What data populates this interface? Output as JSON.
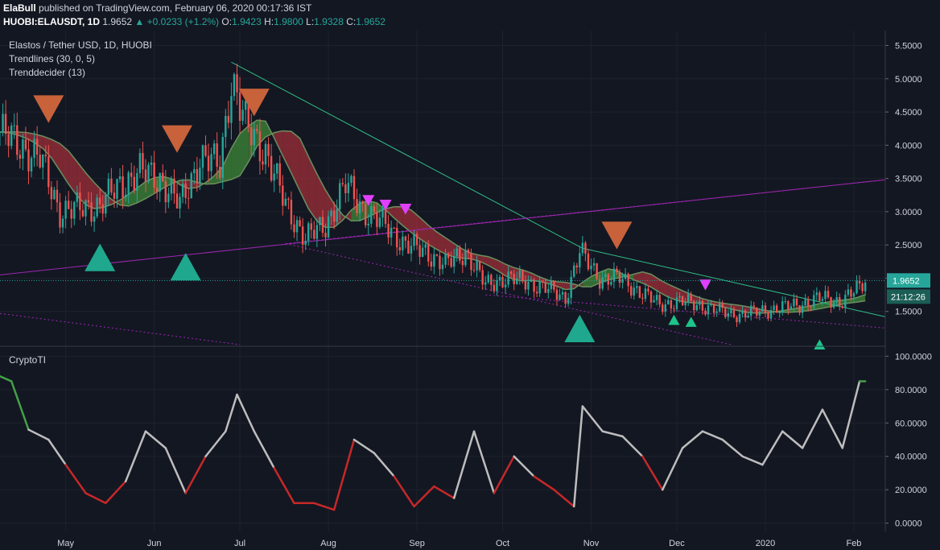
{
  "header": {
    "publisher": "ElaBull",
    "published_text": "published on TradingView.com, February 06, 2020 00:17:36 IST",
    "symbol": "HUOBI:ELAUSDT, 1D",
    "last": "1.9652",
    "change": "+0.0233 (+1.2%)",
    "o_label": "O:",
    "o": "1.9423",
    "h_label": "H:",
    "h": "1.9800",
    "l_label": "L:",
    "l": "1.9328",
    "c_label": "C:",
    "c": "1.9652"
  },
  "legend": {
    "title": "Elastos / Tether USD, 1D, HUOBI",
    "ind1": "Trendlines (30, 0, 5)",
    "ind2": "Trenddecider (13)",
    "lower": "CryptoTI"
  },
  "price_tag": {
    "value": "1.9652",
    "countdown": "21:12:26"
  },
  "colors": {
    "background": "#131722",
    "up": "#26a69a",
    "down": "#ef5350",
    "grid": "#1e222d",
    "trendline": "#2ebd85",
    "channel": "#9c27b0",
    "sell_marker": "#c8623a",
    "buy_marker": "#1fa88e",
    "magenta_marker": "#e040fb",
    "cloud_bear": "#a02f3a",
    "cloud_bull": "#3f8a3a",
    "osc_neutral": "#bdbdbd",
    "osc_bull": "#43a047",
    "osc_bear": "#c62828"
  },
  "chart_data": [
    {
      "type": "candlestick",
      "title": "Elastos / Tether USD, 1D, HUOBI",
      "y_scale": "linear",
      "ylim": [
        1.0,
        5.7
      ],
      "y_ticks": [
        "5.5000",
        "5.0000",
        "4.5000",
        "4.0000",
        "3.5000",
        "3.0000",
        "2.5000",
        "2.0000",
        "1.5000"
      ],
      "x_ticks": [
        "May",
        "Jun",
        "Jul",
        "Aug",
        "Sep",
        "Oct",
        "Nov",
        "Dec",
        "2020",
        "Feb"
      ],
      "x_range": [
        "2019-04-08",
        "2020-02-12"
      ],
      "series": [
        {
          "name": "close",
          "points": [
            [
              "2019-04-08",
              4.2
            ],
            [
              "2019-04-15",
              4.0
            ],
            [
              "2019-04-22",
              3.8
            ],
            [
              "2019-04-29",
              3.0
            ],
            [
              "2019-05-06",
              3.05
            ],
            [
              "2019-05-13",
              3.1
            ],
            [
              "2019-05-20",
              3.4
            ],
            [
              "2019-05-27",
              3.6
            ],
            [
              "2019-06-03",
              3.5
            ],
            [
              "2019-06-10",
              3.1
            ],
            [
              "2019-06-17",
              3.8
            ],
            [
              "2019-06-24",
              3.7
            ],
            [
              "2019-06-28",
              5.0
            ],
            [
              "2019-07-03",
              4.3
            ],
            [
              "2019-07-10",
              3.9
            ],
            [
              "2019-07-17",
              3.1
            ],
            [
              "2019-07-24",
              2.6
            ],
            [
              "2019-07-31",
              2.8
            ],
            [
              "2019-08-07",
              3.4
            ],
            [
              "2019-08-14",
              3.0
            ],
            [
              "2019-08-21",
              2.8
            ],
            [
              "2019-08-28",
              2.5
            ],
            [
              "2019-09-04",
              2.4
            ],
            [
              "2019-09-11",
              2.2
            ],
            [
              "2019-09-18",
              2.4
            ],
            [
              "2019-09-25",
              1.9
            ],
            [
              "2019-10-02",
              2.0
            ],
            [
              "2019-10-09",
              1.95
            ],
            [
              "2019-10-16",
              1.85
            ],
            [
              "2019-10-23",
              1.7
            ],
            [
              "2019-10-28",
              2.4
            ],
            [
              "2019-11-04",
              2.0
            ],
            [
              "2019-11-11",
              2.0
            ],
            [
              "2019-11-18",
              1.8
            ],
            [
              "2019-11-25",
              1.6
            ],
            [
              "2019-12-02",
              1.65
            ],
            [
              "2019-12-09",
              1.6
            ],
            [
              "2019-12-16",
              1.5
            ],
            [
              "2019-12-23",
              1.45
            ],
            [
              "2019-12-30",
              1.5
            ],
            [
              "2020-01-06",
              1.55
            ],
            [
              "2020-01-13",
              1.6
            ],
            [
              "2020-01-20",
              1.7
            ],
            [
              "2020-01-27",
              1.65
            ],
            [
              "2020-02-03",
              1.85
            ],
            [
              "2020-02-05",
              1.9652
            ]
          ]
        }
      ],
      "markers": {
        "sell_large": [
          "2019-04-25",
          "2019-06-09",
          "2019-07-06",
          "2019-11-10"
        ],
        "buy_large": [
          "2019-05-13",
          "2019-06-12",
          "2019-10-28"
        ],
        "sell_magenta": [
          "2019-08-15",
          "2019-08-21",
          "2019-08-28",
          "2019-12-11"
        ],
        "buy_small": [
          "2019-11-30",
          "2019-12-06",
          "2020-01-20"
        ]
      }
    },
    {
      "type": "line",
      "title": "CryptoTI",
      "ylim": [
        -5,
        105
      ],
      "y_ticks": [
        "100.0000",
        "80.0000",
        "60.0000",
        "40.0000",
        "20.0000",
        "0.0000"
      ],
      "series": [
        {
          "name": "CryptoTI",
          "points": [
            [
              "2019-04-08",
              88
            ],
            [
              "2019-04-12",
              85
            ],
            [
              "2019-04-18",
              56
            ],
            [
              "2019-04-25",
              50
            ],
            [
              "2019-05-01",
              35
            ],
            [
              "2019-05-08",
              18
            ],
            [
              "2019-05-15",
              12
            ],
            [
              "2019-05-22",
              25
            ],
            [
              "2019-05-29",
              55
            ],
            [
              "2019-06-05",
              45
            ],
            [
              "2019-06-12",
              18
            ],
            [
              "2019-06-19",
              40
            ],
            [
              "2019-06-26",
              55
            ],
            [
              "2019-06-30",
              77
            ],
            [
              "2019-07-06",
              55
            ],
            [
              "2019-07-13",
              33
            ],
            [
              "2019-07-20",
              12
            ],
            [
              "2019-07-27",
              12
            ],
            [
              "2019-08-03",
              8
            ],
            [
              "2019-08-10",
              50
            ],
            [
              "2019-08-17",
              42
            ],
            [
              "2019-08-24",
              28
            ],
            [
              "2019-08-31",
              10
            ],
            [
              "2019-09-07",
              22
            ],
            [
              "2019-09-14",
              15
            ],
            [
              "2019-09-21",
              55
            ],
            [
              "2019-09-28",
              18
            ],
            [
              "2019-10-05",
              40
            ],
            [
              "2019-10-12",
              28
            ],
            [
              "2019-10-19",
              20
            ],
            [
              "2019-10-26",
              10
            ],
            [
              "2019-10-29",
              70
            ],
            [
              "2019-11-05",
              55
            ],
            [
              "2019-11-12",
              52
            ],
            [
              "2019-11-19",
              40
            ],
            [
              "2019-11-26",
              20
            ],
            [
              "2019-12-03",
              45
            ],
            [
              "2019-12-10",
              55
            ],
            [
              "2019-12-17",
              50
            ],
            [
              "2019-12-24",
              40
            ],
            [
              "2019-12-31",
              35
            ],
            [
              "2020-01-07",
              55
            ],
            [
              "2020-01-14",
              45
            ],
            [
              "2020-01-21",
              68
            ],
            [
              "2020-01-28",
              45
            ],
            [
              "2020-02-03",
              85
            ],
            [
              "2020-02-05",
              85
            ]
          ]
        }
      ]
    }
  ]
}
